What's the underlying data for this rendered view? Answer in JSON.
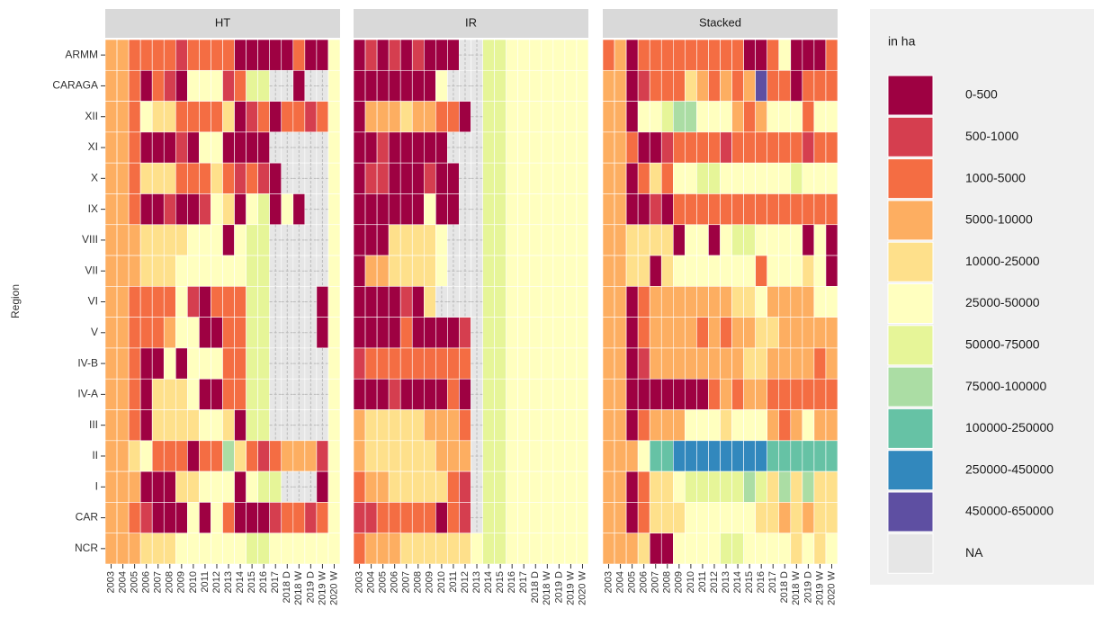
{
  "chart_data": {
    "type": "heatmap",
    "y_label": "Region",
    "legend_title": "in ha",
    "legend": [
      {
        "label": "0-500",
        "color": "#9e0142"
      },
      {
        "label": "500-1000",
        "color": "#d53e4f"
      },
      {
        "label": "1000-5000",
        "color": "#f46d43"
      },
      {
        "label": "5000-10000",
        "color": "#fdae61"
      },
      {
        "label": "10000-25000",
        "color": "#fee08b"
      },
      {
        "label": "25000-50000",
        "color": "#ffffbf"
      },
      {
        "label": "50000-75000",
        "color": "#e6f598"
      },
      {
        "label": "75000-100000",
        "color": "#abdda4"
      },
      {
        "label": "100000-250000",
        "color": "#66c2a5"
      },
      {
        "label": "250000-450000",
        "color": "#3288bd"
      },
      {
        "label": "450000-650000",
        "color": "#5e4fa2"
      },
      {
        "label": "NA",
        "color": "#e6e6e6"
      }
    ],
    "rows": [
      "ARMM",
      "CARAGA",
      "XII",
      "XI",
      "X",
      "IX",
      "VIII",
      "VII",
      "VI",
      "V",
      "IV-B",
      "IV-A",
      "III",
      "II",
      "I",
      "CAR",
      "NCR"
    ],
    "columns": [
      "2003",
      "2004",
      "2005",
      "2006",
      "2007",
      "2008",
      "2009",
      "2010",
      "2011",
      "2012",
      "2013",
      "2014",
      "2015",
      "2016",
      "2017",
      "2018 D",
      "2018 W",
      "2019 D",
      "2019 W",
      "2020 W"
    ],
    "facets": [
      {
        "name": "HT",
        "cells": [
          [
            3,
            3,
            2,
            2,
            2,
            2,
            1,
            2,
            2,
            2,
            2,
            0,
            0,
            0,
            0,
            0,
            2,
            0,
            0,
            5
          ],
          [
            3,
            3,
            2,
            0,
            2,
            1,
            0,
            5,
            5,
            5,
            1,
            2,
            6,
            6,
            null,
            null,
            0,
            null,
            null,
            5
          ],
          [
            3,
            3,
            2,
            5,
            4,
            4,
            2,
            2,
            2,
            2,
            4,
            0,
            1,
            2,
            0,
            2,
            2,
            1,
            2,
            5
          ],
          [
            3,
            3,
            2,
            0,
            0,
            0,
            1,
            0,
            5,
            5,
            0,
            0,
            0,
            0,
            null,
            null,
            null,
            null,
            null,
            5
          ],
          [
            3,
            3,
            2,
            4,
            4,
            4,
            2,
            2,
            2,
            4,
            2,
            1,
            2,
            1,
            0,
            null,
            null,
            null,
            null,
            5
          ],
          [
            3,
            3,
            2,
            0,
            0,
            1,
            0,
            0,
            1,
            5,
            4,
            0,
            5,
            6,
            0,
            5,
            0,
            null,
            null,
            5
          ],
          [
            3,
            3,
            3,
            4,
            4,
            4,
            4,
            5,
            5,
            5,
            0,
            5,
            6,
            6,
            null,
            null,
            null,
            null,
            null,
            5
          ],
          [
            3,
            3,
            3,
            4,
            4,
            4,
            5,
            5,
            5,
            5,
            5,
            5,
            6,
            6,
            null,
            null,
            null,
            null,
            null,
            5
          ],
          [
            3,
            3,
            2,
            2,
            2,
            2,
            5,
            1,
            0,
            2,
            2,
            2,
            6,
            6,
            null,
            null,
            null,
            null,
            0,
            5
          ],
          [
            3,
            3,
            2,
            2,
            2,
            3,
            5,
            5,
            0,
            0,
            2,
            2,
            6,
            6,
            null,
            null,
            null,
            null,
            0,
            5
          ],
          [
            3,
            3,
            2,
            0,
            0,
            5,
            0,
            5,
            5,
            5,
            2,
            2,
            6,
            6,
            null,
            null,
            null,
            null,
            null,
            5
          ],
          [
            3,
            3,
            2,
            0,
            4,
            4,
            4,
            5,
            0,
            0,
            2,
            2,
            6,
            6,
            null,
            null,
            null,
            null,
            null,
            5
          ],
          [
            3,
            3,
            2,
            0,
            4,
            4,
            4,
            4,
            5,
            5,
            4,
            0,
            6,
            6,
            null,
            null,
            null,
            null,
            null,
            5
          ],
          [
            3,
            3,
            4,
            5,
            2,
            2,
            2,
            0,
            2,
            2,
            7,
            4,
            2,
            1,
            2,
            3,
            3,
            3,
            1,
            5
          ],
          [
            3,
            3,
            3,
            0,
            0,
            0,
            4,
            4,
            5,
            5,
            5,
            0,
            5,
            6,
            6,
            null,
            null,
            null,
            0,
            5
          ],
          [
            3,
            3,
            2,
            1,
            0,
            0,
            0,
            5,
            0,
            5,
            2,
            0,
            0,
            0,
            1,
            2,
            2,
            1,
            2,
            5
          ],
          [
            3,
            3,
            3,
            4,
            4,
            4,
            5,
            5,
            5,
            5,
            5,
            5,
            6,
            6,
            5,
            5,
            5,
            5,
            5,
            5
          ]
        ]
      },
      {
        "name": "IR",
        "cells": [
          [
            0,
            1,
            0,
            1,
            0,
            1,
            0,
            0,
            0,
            null,
            null,
            6,
            6,
            5,
            5,
            5,
            5,
            5,
            5,
            5
          ],
          [
            0,
            0,
            0,
            0,
            0,
            0,
            0,
            5,
            null,
            null,
            null,
            6,
            6,
            5,
            5,
            5,
            5,
            5,
            5,
            5
          ],
          [
            0,
            3,
            3,
            3,
            4,
            3,
            3,
            2,
            2,
            0,
            null,
            6,
            6,
            5,
            5,
            5,
            5,
            5,
            5,
            5
          ],
          [
            0,
            0,
            1,
            0,
            0,
            0,
            0,
            0,
            null,
            null,
            null,
            6,
            6,
            5,
            5,
            5,
            5,
            5,
            5,
            5
          ],
          [
            0,
            1,
            1,
            0,
            0,
            0,
            1,
            0,
            0,
            null,
            null,
            6,
            6,
            5,
            5,
            5,
            5,
            5,
            5,
            5
          ],
          [
            0,
            0,
            0,
            0,
            0,
            0,
            5,
            0,
            0,
            null,
            null,
            6,
            6,
            5,
            5,
            5,
            5,
            5,
            5,
            5
          ],
          [
            0,
            0,
            0,
            4,
            4,
            4,
            4,
            5,
            null,
            null,
            null,
            6,
            6,
            5,
            5,
            5,
            5,
            5,
            5,
            5
          ],
          [
            0,
            3,
            3,
            4,
            4,
            4,
            4,
            5,
            null,
            null,
            null,
            6,
            6,
            5,
            5,
            5,
            5,
            5,
            5,
            5
          ],
          [
            0,
            0,
            0,
            0,
            1,
            0,
            4,
            null,
            null,
            null,
            null,
            6,
            6,
            5,
            5,
            5,
            5,
            5,
            5,
            5
          ],
          [
            0,
            0,
            0,
            0,
            2,
            0,
            0,
            0,
            0,
            1,
            null,
            6,
            6,
            5,
            5,
            5,
            5,
            5,
            5,
            5
          ],
          [
            1,
            2,
            2,
            2,
            2,
            2,
            2,
            2,
            2,
            2,
            null,
            6,
            6,
            5,
            5,
            5,
            5,
            5,
            5,
            5
          ],
          [
            0,
            0,
            0,
            1,
            0,
            0,
            0,
            0,
            2,
            0,
            null,
            6,
            6,
            5,
            5,
            5,
            5,
            5,
            5,
            5
          ],
          [
            3,
            4,
            4,
            4,
            4,
            4,
            3,
            3,
            3,
            2,
            null,
            6,
            6,
            5,
            5,
            5,
            5,
            5,
            5,
            5
          ],
          [
            3,
            4,
            4,
            4,
            4,
            4,
            4,
            3,
            3,
            3,
            null,
            6,
            6,
            5,
            5,
            5,
            5,
            5,
            5,
            5
          ],
          [
            2,
            3,
            3,
            4,
            4,
            4,
            4,
            4,
            2,
            1,
            null,
            6,
            6,
            5,
            5,
            5,
            5,
            5,
            5,
            5
          ],
          [
            1,
            1,
            2,
            2,
            2,
            2,
            2,
            0,
            2,
            1,
            null,
            6,
            6,
            5,
            5,
            5,
            5,
            5,
            5,
            5
          ],
          [
            2,
            3,
            3,
            3,
            4,
            4,
            4,
            4,
            4,
            4,
            5,
            6,
            6,
            5,
            5,
            5,
            5,
            5,
            5,
            5
          ]
        ]
      },
      {
        "name": "Stacked",
        "cells": [
          [
            2,
            3,
            0,
            2,
            2,
            2,
            2,
            2,
            2,
            2,
            2,
            2,
            0,
            0,
            2,
            5,
            0,
            0,
            0,
            2
          ],
          [
            3,
            3,
            0,
            1,
            2,
            2,
            2,
            4,
            3,
            2,
            3,
            2,
            3,
            10,
            2,
            2,
            0,
            2,
            2,
            2
          ],
          [
            3,
            3,
            0,
            5,
            5,
            6,
            7,
            7,
            5,
            5,
            5,
            3,
            2,
            3,
            5,
            5,
            5,
            2,
            5,
            5
          ],
          [
            3,
            3,
            2,
            0,
            0,
            1,
            2,
            2,
            2,
            2,
            1,
            2,
            2,
            2,
            2,
            2,
            2,
            1,
            2,
            2
          ],
          [
            3,
            3,
            0,
            2,
            4,
            2,
            5,
            5,
            6,
            6,
            5,
            5,
            5,
            5,
            5,
            5,
            6,
            5,
            5,
            5
          ],
          [
            3,
            3,
            0,
            0,
            1,
            0,
            2,
            2,
            2,
            2,
            2,
            2,
            2,
            2,
            2,
            2,
            2,
            2,
            2,
            2
          ],
          [
            3,
            3,
            4,
            4,
            4,
            4,
            0,
            5,
            5,
            0,
            5,
            6,
            6,
            5,
            5,
            5,
            5,
            0,
            5,
            0
          ],
          [
            3,
            3,
            4,
            4,
            0,
            4,
            5,
            5,
            5,
            5,
            5,
            5,
            5,
            2,
            5,
            5,
            5,
            4,
            5,
            0
          ],
          [
            3,
            3,
            0,
            2,
            3,
            3,
            3,
            3,
            3,
            3,
            3,
            4,
            4,
            5,
            3,
            3,
            3,
            3,
            5,
            5
          ],
          [
            3,
            3,
            0,
            2,
            3,
            3,
            3,
            3,
            2,
            3,
            2,
            3,
            3,
            4,
            4,
            3,
            3,
            3,
            3,
            3
          ],
          [
            3,
            3,
            0,
            1,
            3,
            3,
            3,
            3,
            3,
            3,
            3,
            3,
            4,
            4,
            3,
            3,
            3,
            3,
            2,
            3
          ],
          [
            3,
            3,
            0,
            0,
            0,
            0,
            0,
            0,
            0,
            2,
            3,
            2,
            3,
            3,
            2,
            2,
            2,
            2,
            2,
            2
          ],
          [
            3,
            3,
            0,
            2,
            3,
            3,
            3,
            5,
            5,
            5,
            4,
            5,
            5,
            5,
            3,
            2,
            3,
            5,
            3,
            3
          ],
          [
            3,
            3,
            3,
            5,
            8,
            8,
            9,
            9,
            9,
            9,
            9,
            9,
            9,
            9,
            8,
            8,
            8,
            8,
            8,
            8
          ],
          [
            3,
            3,
            0,
            2,
            4,
            4,
            5,
            6,
            6,
            6,
            6,
            6,
            7,
            6,
            4,
            7,
            4,
            7,
            4,
            4
          ],
          [
            3,
            3,
            0,
            2,
            4,
            4,
            4,
            5,
            5,
            5,
            5,
            5,
            5,
            4,
            4,
            3,
            4,
            3,
            4,
            4
          ],
          [
            3,
            3,
            3,
            4,
            0,
            0,
            5,
            5,
            5,
            5,
            6,
            6,
            5,
            5,
            5,
            5,
            4,
            5,
            4,
            5
          ]
        ]
      }
    ]
  }
}
